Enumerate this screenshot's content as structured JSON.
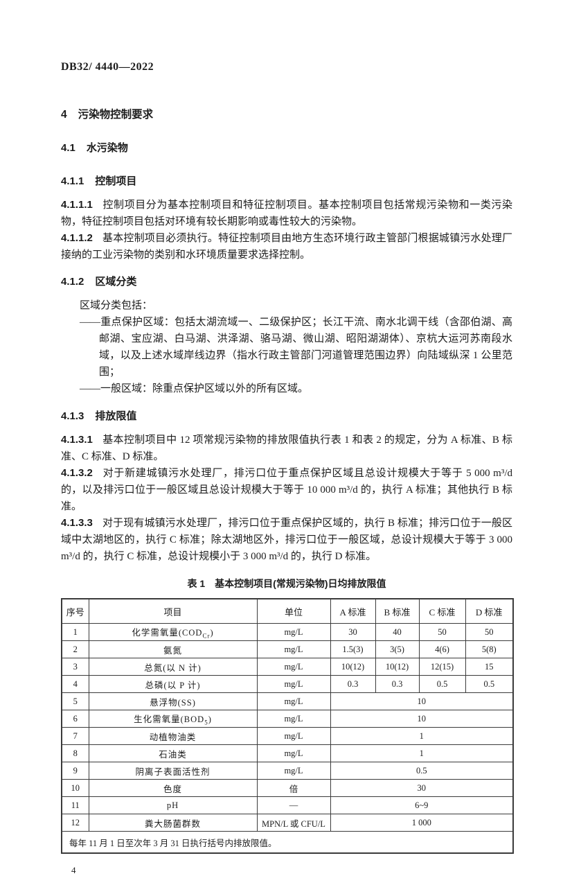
{
  "page": {
    "doc_number": "DB32/ 4440—2022",
    "page_number": "4"
  },
  "sections": {
    "h4": {
      "num": "4",
      "title": "污染物控制要求"
    },
    "h41": {
      "num": "4.1",
      "title": "水污染物"
    },
    "h411": {
      "num": "4.1.1",
      "title": "控制项目"
    },
    "p4111": {
      "num": "4.1.1.1",
      "text": "控制项目分为基本控制项目和特征控制项目。基本控制项目包括常规污染物和一类污染物，特征控制项目包括对环境有较长期影响或毒性较大的污染物。"
    },
    "p4112": {
      "num": "4.1.1.2",
      "text": "基本控制项目必须执行。特征控制项目由地方生态环境行政主管部门根据城镇污水处理厂接纳的工业污染物的类别和水环境质量要求选择控制。"
    },
    "h412": {
      "num": "4.1.2",
      "title": "区域分类"
    },
    "p412_intro": "区域分类包括：",
    "p412_items": [
      "——重点保护区域：包括太湖流域一、二级保护区；长江干流、南水北调干线（含邵伯湖、高邮湖、宝应湖、白马湖、洪泽湖、骆马湖、微山湖、昭阳湖湖体）、京杭大运河苏南段水域，以及上述水域岸线边界（指水行政主管部门河道管理范围边界）向陆域纵深 1 公里范围；",
      "——一般区域：除重点保护区域以外的所有区域。"
    ],
    "h413": {
      "num": "4.1.3",
      "title": "排放限值"
    },
    "p4131": {
      "num": "4.1.3.1",
      "text": "基本控制项目中 12 项常规污染物的排放限值执行表 1 和表 2 的规定，分为 A 标准、B 标准、C 标准、D 标准。"
    },
    "p4132": {
      "num": "4.1.3.2",
      "text": "对于新建城镇污水处理厂，排污口位于重点保护区域且总设计规模大于等于 5 000 m³/d 的，以及排污口位于一般区域且总设计规模大于等于 10 000 m³/d 的，执行 A 标准；其他执行 B 标准。"
    },
    "p4133": {
      "num": "4.1.3.3",
      "text": "对于现有城镇污水处理厂，排污口位于重点保护区域的，执行 B 标准；排污口位于一般区域中太湖地区的，执行 C 标准；除太湖地区外，排污口位于一般区域，总设计规模大于等于 3 000 m³/d 的，执行 C 标准，总设计规模小于 3 000 m³/d 的，执行 D 标准。"
    }
  },
  "table1": {
    "title_label": "表 1",
    "title_text": "基本控制项目(常规污染物)日均排放限值",
    "headers": [
      "序号",
      "项目",
      "单位",
      "A 标准",
      "B 标准",
      "C 标准",
      "D 标准"
    ],
    "rows": [
      {
        "no": "1",
        "item": "化学需氧量(COD_{Cr})",
        "unit": "mg/L",
        "values": [
          "30",
          "40",
          "50",
          "50"
        ]
      },
      {
        "no": "2",
        "item": "氨氮",
        "unit": "mg/L",
        "values": [
          "1.5(3)",
          "3(5)",
          "4(6)",
          "5(8)"
        ]
      },
      {
        "no": "3",
        "item": "总氮(以 N 计)",
        "unit": "mg/L",
        "values": [
          "10(12)",
          "10(12)",
          "12(15)",
          "15"
        ]
      },
      {
        "no": "4",
        "item": "总磷(以 P 计)",
        "unit": "mg/L",
        "values": [
          "0.3",
          "0.3",
          "0.5",
          "0.5"
        ]
      },
      {
        "no": "5",
        "item": "悬浮物(SS)",
        "unit": "mg/L",
        "merged": "10"
      },
      {
        "no": "6",
        "item": "生化需氧量(BOD_{5})",
        "unit": "mg/L",
        "merged": "10"
      },
      {
        "no": "7",
        "item": "动植物油类",
        "unit": "mg/L",
        "merged": "1"
      },
      {
        "no": "8",
        "item": "石油类",
        "unit": "mg/L",
        "merged": "1"
      },
      {
        "no": "9",
        "item": "阴离子表面活性剂",
        "unit": "mg/L",
        "merged": "0.5"
      },
      {
        "no": "10",
        "item": "色度",
        "unit": "倍",
        "merged": "30"
      },
      {
        "no": "11",
        "item": "pH",
        "unit": "—",
        "merged": "6~9"
      },
      {
        "no": "12",
        "item": "粪大肠菌群数",
        "unit": "MPN/L 或 CFU/L",
        "merged": "1 000"
      }
    ],
    "footnote": "每年 11 月 1 日至次年 3 月 31 日执行括号内排放限值。"
  }
}
